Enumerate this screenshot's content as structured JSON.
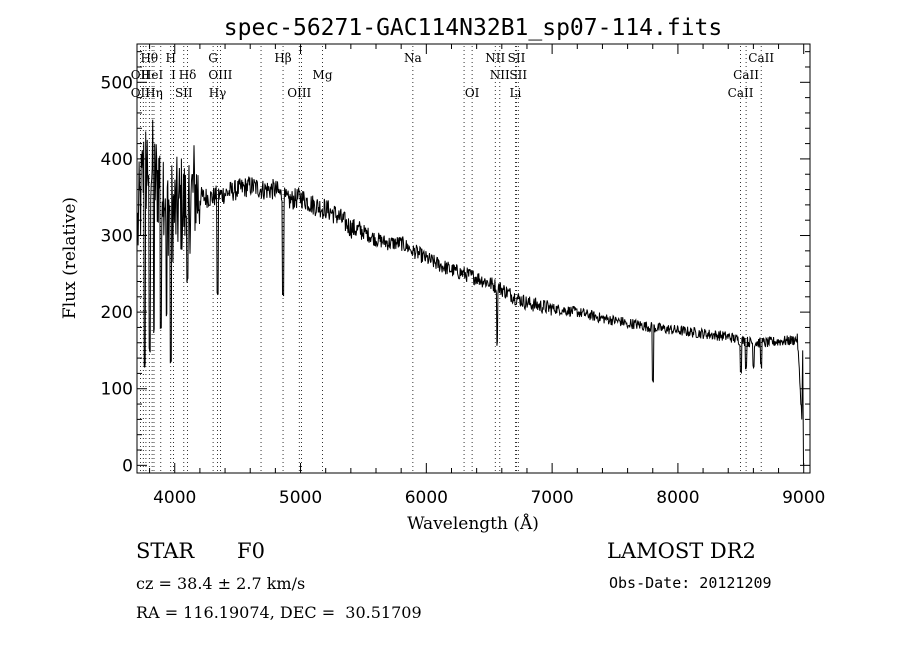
{
  "chart_data": {
    "type": "line",
    "title": "spec-56271-GAC114N32B1_sp07-114.fits",
    "xlabel": "Wavelength (Å)",
    "ylabel": "Flux (relative)",
    "xlim": [
      3700,
      9050
    ],
    "ylim": [
      -10,
      550
    ],
    "xticks": [
      4000,
      5000,
      6000,
      7000,
      8000,
      9000
    ],
    "yticks": [
      0,
      100,
      200,
      300,
      400,
      500
    ],
    "grid": false,
    "line_color": "#000000",
    "spectrum_envelope": {
      "x": [
        3700,
        3750,
        3800,
        3850,
        3900,
        3950,
        4000,
        4050,
        4100,
        4150,
        4200,
        4300,
        4400,
        4500,
        4600,
        4700,
        4800,
        4900,
        5000,
        5100,
        5200,
        5300,
        5400,
        5500,
        5600,
        5700,
        5800,
        5900,
        6000,
        6100,
        6200,
        6300,
        6400,
        6500,
        6600,
        6700,
        6800,
        6900,
        7000,
        7200,
        7400,
        7600,
        7800,
        8000,
        8200,
        8400,
        8500,
        8600,
        8700,
        8800,
        8900,
        8950,
        9000
      ],
      "y": [
        300,
        380,
        400,
        370,
        380,
        340,
        330,
        340,
        335,
        360,
        350,
        350,
        355,
        360,
        365,
        360,
        360,
        345,
        350,
        340,
        335,
        325,
        310,
        305,
        295,
        290,
        290,
        280,
        270,
        262,
        255,
        250,
        245,
        238,
        230,
        220,
        212,
        208,
        205,
        200,
        192,
        186,
        180,
        176,
        172,
        168,
        163,
        160,
        160,
        162,
        163,
        165,
        20
      ]
    },
    "absorption_dips": [
      {
        "x": 3760,
        "y": 130
      },
      {
        "x": 3800,
        "y": 150
      },
      {
        "x": 3835,
        "y": 175
      },
      {
        "x": 3890,
        "y": 180
      },
      {
        "x": 3935,
        "y": 195
      },
      {
        "x": 3970,
        "y": 135
      },
      {
        "x": 4102,
        "y": 240
      },
      {
        "x": 4340,
        "y": 225
      },
      {
        "x": 4861,
        "y": 225
      },
      {
        "x": 5180,
        "y": 325
      },
      {
        "x": 5890,
        "y": 275
      },
      {
        "x": 6563,
        "y": 160
      },
      {
        "x": 7600,
        "y": 180
      },
      {
        "x": 7800,
        "y": 110
      },
      {
        "x": 8500,
        "y": 125
      },
      {
        "x": 8540,
        "y": 130
      },
      {
        "x": 8600,
        "y": 130
      },
      {
        "x": 8662,
        "y": 130
      }
    ],
    "line_markers": [
      {
        "label": "Hθ",
        "x": 3798,
        "row": 0
      },
      {
        "label": "OII",
        "x": 3727,
        "row": 1
      },
      {
        "label": "HeI",
        "x": 3820,
        "row": 1
      },
      {
        "label": "OII",
        "x": 3727,
        "row": 2
      },
      {
        "label": "Hη",
        "x": 3835,
        "row": 2
      },
      {
        "label": "H",
        "x": 3968,
        "row": 0
      },
      {
        "label": "I",
        "x": 3990,
        "row": 1
      },
      {
        "label": "Hδ",
        "x": 4102,
        "row": 1
      },
      {
        "label": "SII",
        "x": 4072,
        "row": 2
      },
      {
        "label": "G",
        "x": 4305,
        "row": 0
      },
      {
        "label": "OIII",
        "x": 4363,
        "row": 1
      },
      {
        "label": "Hγ",
        "x": 4340,
        "row": 2
      },
      {
        "label": "Hβ",
        "x": 4861,
        "row": 0
      },
      {
        "label": "Mg",
        "x": 5175,
        "row": 1
      },
      {
        "label": "OIII",
        "x": 4990,
        "row": 2
      },
      {
        "label": "Na",
        "x": 5893,
        "row": 0
      },
      {
        "label": "OI",
        "x": 6364,
        "row": 2
      },
      {
        "label": "NII",
        "x": 6548,
        "row": 0
      },
      {
        "label": "SII",
        "x": 6717,
        "row": 0
      },
      {
        "label": "NII",
        "x": 6584,
        "row": 1
      },
      {
        "label": "SII",
        "x": 6731,
        "row": 1
      },
      {
        "label": "Li",
        "x": 6708,
        "row": 2
      },
      {
        "label": "CaII",
        "x": 8662,
        "row": 0
      },
      {
        "label": "CaII",
        "x": 8542,
        "row": 1
      },
      {
        "label": "CaII",
        "x": 8498,
        "row": 2
      }
    ],
    "extra_guide_lines": [
      3750,
      3771,
      3889,
      4686,
      5007,
      6300
    ]
  },
  "info": {
    "object_class": "STAR",
    "subclass": "F0",
    "survey": "LAMOST DR2",
    "redshift": "cz = 38.4 ± 2.7 km/s",
    "obs_date": "Obs-Date: 20121209",
    "coords": "RA = 116.19074, DEC =  30.51709"
  }
}
